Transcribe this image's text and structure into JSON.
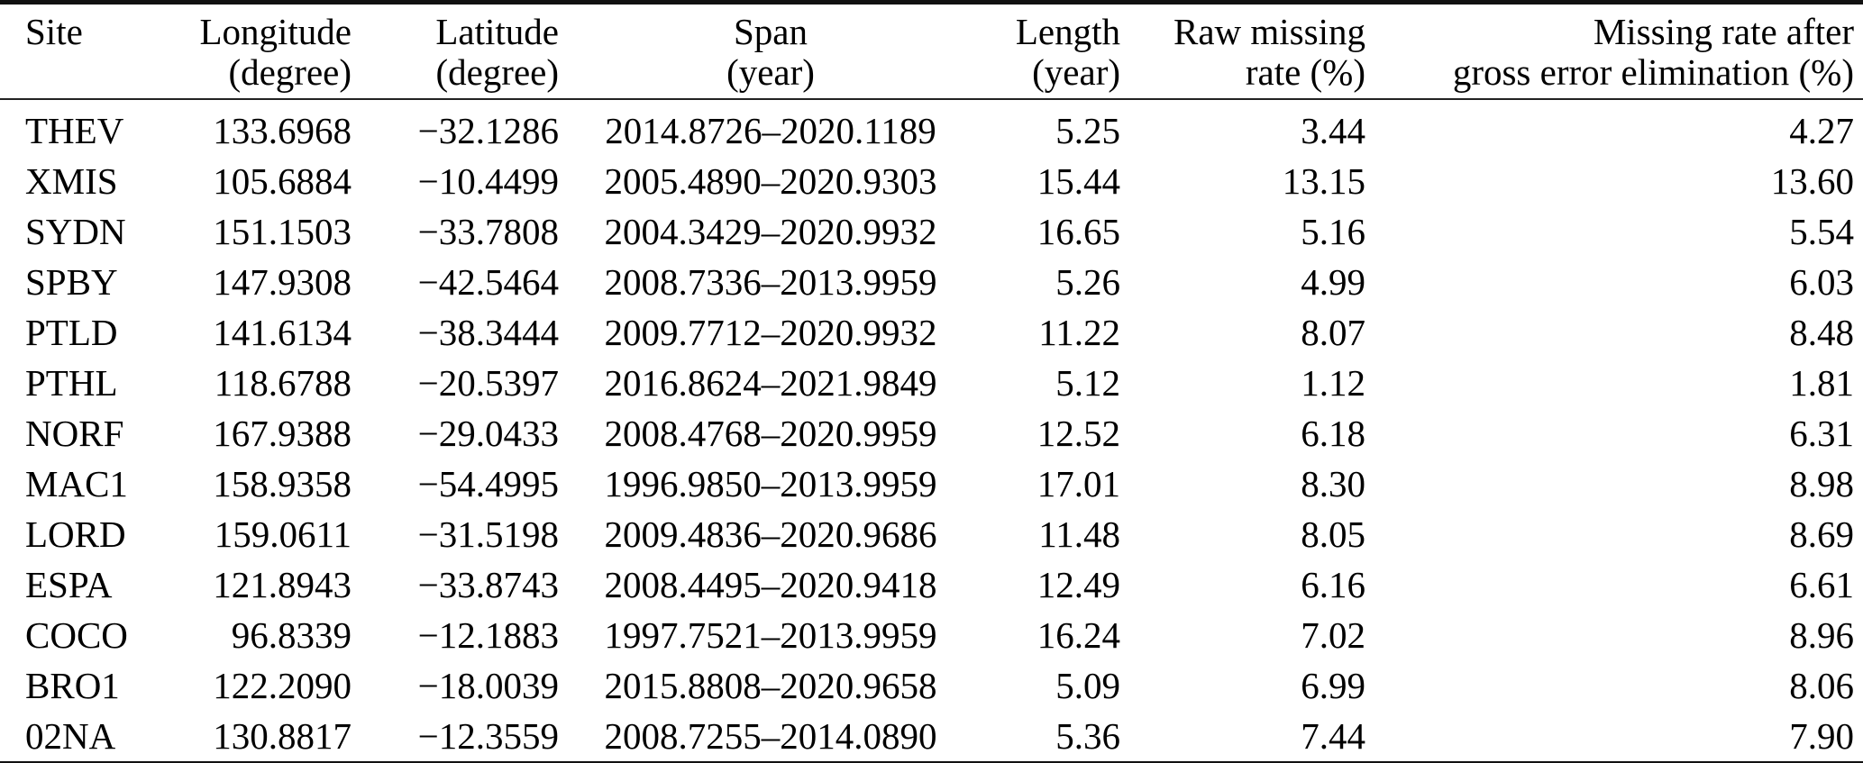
{
  "table": {
    "columns": [
      {
        "id": "site",
        "line1": "Site",
        "line2": "",
        "align": "left"
      },
      {
        "id": "longitude",
        "line1": "Longitude",
        "line2": "(degree)",
        "align": "right"
      },
      {
        "id": "latitude",
        "line1": "Latitude",
        "line2": "(degree)",
        "align": "right"
      },
      {
        "id": "span",
        "line1": "Span",
        "line2": "(year)",
        "align": "center"
      },
      {
        "id": "length",
        "line1": "Length",
        "line2": "(year)",
        "align": "right"
      },
      {
        "id": "raw_missing",
        "line1": "Raw missing",
        "line2": "rate (%)",
        "align": "right"
      },
      {
        "id": "missing_after",
        "line1": "Missing rate after",
        "line2": "gross error elimination (%)",
        "align": "right"
      }
    ],
    "rows": [
      [
        "THEV",
        "133.6968",
        "−32.1286",
        "2014.8726–2020.1189",
        "5.25",
        "3.44",
        "4.27"
      ],
      [
        "XMIS",
        "105.6884",
        "−10.4499",
        "2005.4890–2020.9303",
        "15.44",
        "13.15",
        "13.60"
      ],
      [
        "SYDN",
        "151.1503",
        "−33.7808",
        "2004.3429–2020.9932",
        "16.65",
        "5.16",
        "5.54"
      ],
      [
        "SPBY",
        "147.9308",
        "−42.5464",
        "2008.7336–2013.9959",
        "5.26",
        "4.99",
        "6.03"
      ],
      [
        "PTLD",
        "141.6134",
        "−38.3444",
        "2009.7712–2020.9932",
        "11.22",
        "8.07",
        "8.48"
      ],
      [
        "PTHL",
        "118.6788",
        "−20.5397",
        "2016.8624–2021.9849",
        "5.12",
        "1.12",
        "1.81"
      ],
      [
        "NORF",
        "167.9388",
        "−29.0433",
        "2008.4768–2020.9959",
        "12.52",
        "6.18",
        "6.31"
      ],
      [
        "MAC1",
        "158.9358",
        "−54.4995",
        "1996.9850–2013.9959",
        "17.01",
        "8.30",
        "8.98"
      ],
      [
        "LORD",
        "159.0611",
        "−31.5198",
        "2009.4836–2020.9686",
        "11.48",
        "8.05",
        "8.69"
      ],
      [
        "ESPA",
        "121.8943",
        "−33.8743",
        "2008.4495–2020.9418",
        "12.49",
        "6.16",
        "6.61"
      ],
      [
        "COCO",
        "96.8339",
        "−12.1883",
        "1997.7521–2013.9959",
        "16.24",
        "7.02",
        "8.96"
      ],
      [
        "BRO1",
        "122.2090",
        "−18.0039",
        "2015.8808–2020.9658",
        "5.09",
        "6.99",
        "8.06"
      ],
      [
        "02NA",
        "130.8817",
        "−12.3559",
        "2008.7255–2014.0890",
        "5.36",
        "7.44",
        "7.90"
      ]
    ]
  },
  "colors": {
    "rule": "#111111",
    "text": "#000000",
    "background": "#ffffff"
  }
}
